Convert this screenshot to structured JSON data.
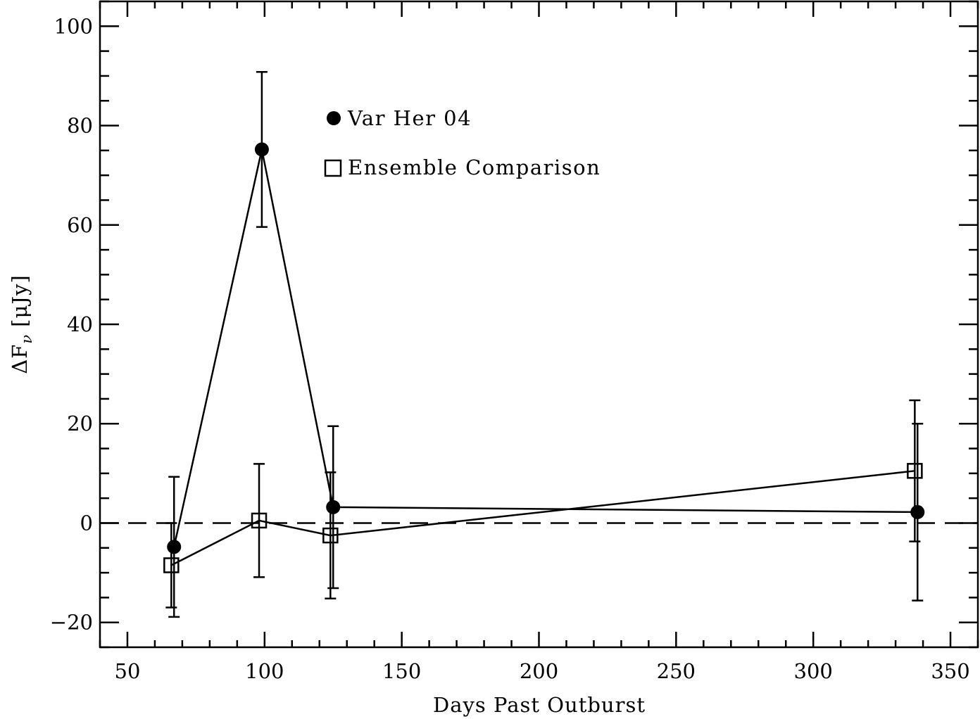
{
  "chart_data": {
    "type": "scatter",
    "xlabel": "Days Past Outburst",
    "ylabel": "ΔF",
    "ylabel_sub": "ν",
    "ylabel_units": "[μJy]",
    "xlim": [
      40,
      360
    ],
    "ylim": [
      -25,
      105
    ],
    "x_ticks": [
      50,
      100,
      150,
      200,
      250,
      300,
      350
    ],
    "y_ticks": [
      -20,
      0,
      20,
      40,
      60,
      80,
      100
    ],
    "x_minor_step": 10,
    "y_minor_step": 5,
    "reference_line": {
      "y": 0,
      "style": "dashed"
    },
    "grid": false,
    "legend_position": "top-left",
    "series": [
      {
        "name": "Var Her 04",
        "marker": "filled-circle",
        "x": [
          67,
          99,
          125,
          338
        ],
        "y": [
          -4.8,
          75.2,
          3.2,
          2.2
        ],
        "yerr": [
          14.1,
          15.6,
          16.3,
          17.8
        ]
      },
      {
        "name": "Ensemble Comparison",
        "marker": "open-square",
        "x": [
          66,
          98,
          124,
          337
        ],
        "y": [
          -8.5,
          0.5,
          -2.5,
          10.5
        ],
        "yerr": [
          8.5,
          11.4,
          12.7,
          14.2
        ]
      }
    ],
    "colors": {
      "line": "#000000",
      "background": "#ffffff"
    }
  }
}
